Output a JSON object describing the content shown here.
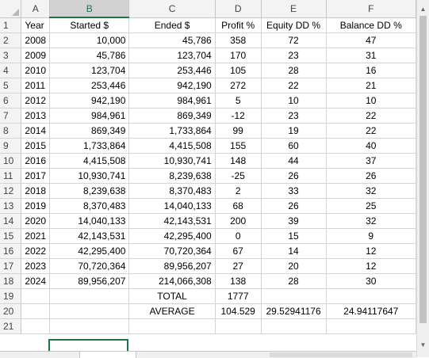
{
  "columns": [
    "A",
    "B",
    "C",
    "D",
    "E",
    "F"
  ],
  "selected_column": "B",
  "rows": [
    {
      "n": "1",
      "a": "Year",
      "b": "Started $",
      "c": "Ended $",
      "d": "Profit %",
      "e": "Equity DD %",
      "f": "Balance DD %"
    },
    {
      "n": "2",
      "a": "2008",
      "b": "10,000",
      "c": "45,786",
      "d": "358",
      "e": "72",
      "f": "47"
    },
    {
      "n": "3",
      "a": "2009",
      "b": "45,786",
      "c": "123,704",
      "d": "170",
      "e": "23",
      "f": "31"
    },
    {
      "n": "4",
      "a": "2010",
      "b": "123,704",
      "c": "253,446",
      "d": "105",
      "e": "28",
      "f": "16"
    },
    {
      "n": "5",
      "a": "2011",
      "b": "253,446",
      "c": "942,190",
      "d": "272",
      "e": "22",
      "f": "21"
    },
    {
      "n": "6",
      "a": "2012",
      "b": "942,190",
      "c": "984,961",
      "d": "5",
      "e": "10",
      "f": "10"
    },
    {
      "n": "7",
      "a": "2013",
      "b": "984,961",
      "c": "869,349",
      "d": "-12",
      "e": "23",
      "f": "22"
    },
    {
      "n": "8",
      "a": "2014",
      "b": "869,349",
      "c": "1,733,864",
      "d": "99",
      "e": "19",
      "f": "22"
    },
    {
      "n": "9",
      "a": "2015",
      "b": "1,733,864",
      "c": "4,415,508",
      "d": "155",
      "e": "60",
      "f": "40"
    },
    {
      "n": "10",
      "a": "2016",
      "b": "4,415,508",
      "c": "10,930,741",
      "d": "148",
      "e": "44",
      "f": "37"
    },
    {
      "n": "11",
      "a": "2017",
      "b": "10,930,741",
      "c": "8,239,638",
      "d": "-25",
      "e": "26",
      "f": "26"
    },
    {
      "n": "12",
      "a": "2018",
      "b": "8,239,638",
      "c": "8,370,483",
      "d": "2",
      "e": "33",
      "f": "32"
    },
    {
      "n": "13",
      "a": "2019",
      "b": "8,370,483",
      "c": "14,040,133",
      "d": "68",
      "e": "26",
      "f": "25"
    },
    {
      "n": "14",
      "a": "2020",
      "b": "14,040,133",
      "c": "42,143,531",
      "d": "200",
      "e": "39",
      "f": "32"
    },
    {
      "n": "15",
      "a": "2021",
      "b": "42,143,531",
      "c": "42,295,400",
      "d": "0",
      "e": "15",
      "f": "9"
    },
    {
      "n": "16",
      "a": "2022",
      "b": "42,295,400",
      "c": "70,720,364",
      "d": "67",
      "e": "14",
      "f": "12"
    },
    {
      "n": "17",
      "a": "2023",
      "b": "70,720,364",
      "c": "89,956,207",
      "d": "27",
      "e": "20",
      "f": "12"
    },
    {
      "n": "18",
      "a": "2024",
      "b": "89,956,207",
      "c": "214,066,308",
      "d": "138",
      "e": "28",
      "f": "30"
    },
    {
      "n": "19",
      "a": "",
      "b": "",
      "c": "TOTAL",
      "d": "1777",
      "e": "",
      "f": ""
    },
    {
      "n": "20",
      "a": "",
      "b": "",
      "c": "AVERAGE",
      "d": "104.529",
      "e": "29.52941176",
      "f": "24.94117647"
    },
    {
      "n": "21",
      "a": "",
      "b": "",
      "c": "",
      "d": "",
      "e": "",
      "f": ""
    }
  ],
  "accent_color": "#217346"
}
